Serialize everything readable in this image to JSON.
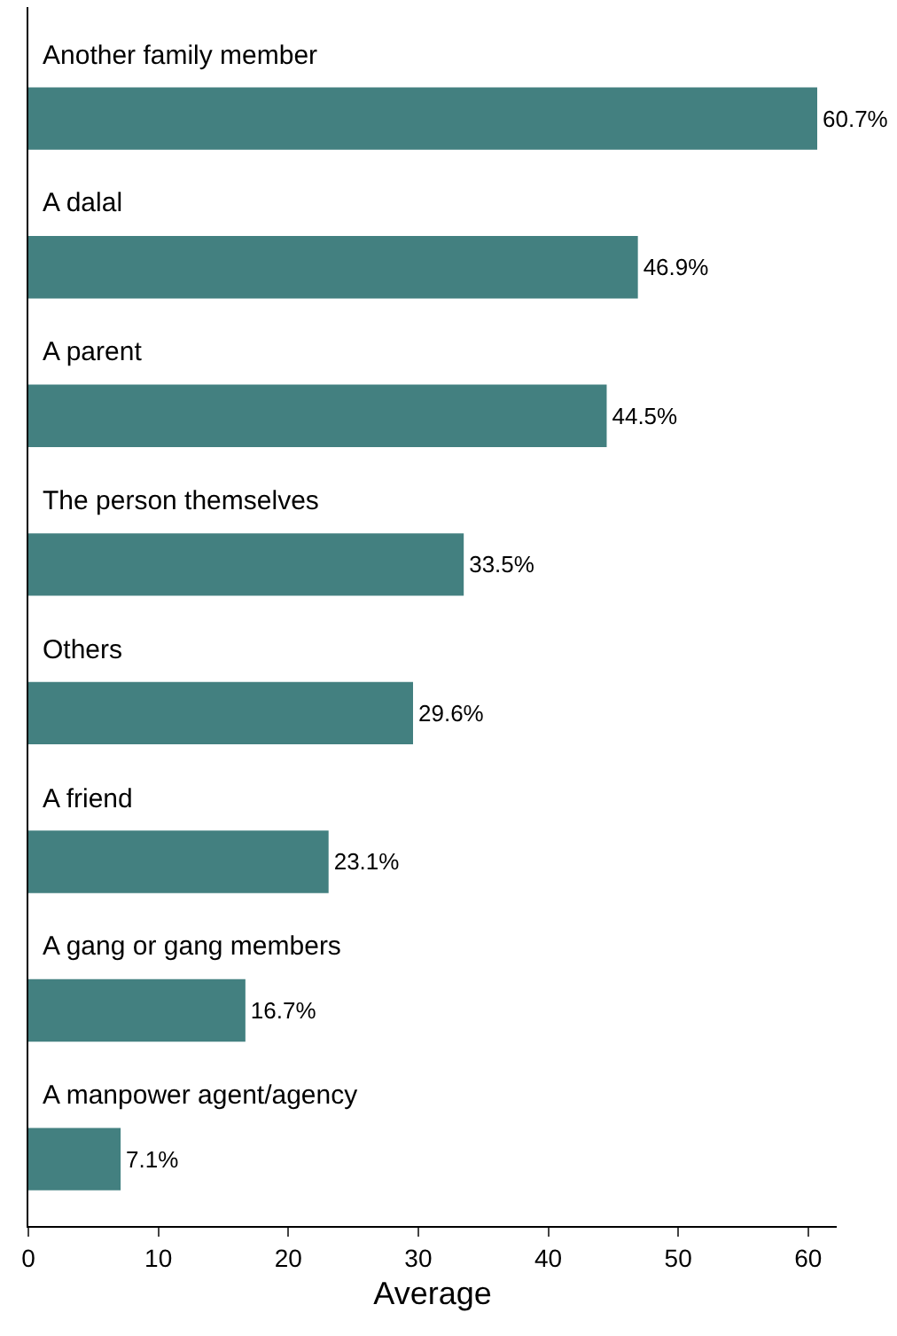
{
  "chart_data": {
    "type": "bar",
    "orientation": "horizontal",
    "xlabel": "Average",
    "categories": [
      "Another family member",
      "A dalal",
      "A parent",
      "The person themselves",
      "Others",
      "A friend",
      "A gang or gang members",
      "A manpower agent/agency"
    ],
    "values": [
      60.7,
      46.9,
      44.5,
      33.5,
      29.6,
      23.1,
      16.7,
      7.1
    ],
    "value_labels": [
      "60.7%",
      "46.9%",
      "44.5%",
      "33.5%",
      "29.6%",
      "23.1%",
      "16.7%",
      "7.1%"
    ],
    "color": "#438080",
    "xlim": [
      0,
      62.2
    ],
    "xticks": [
      0,
      10,
      20,
      30,
      40,
      50,
      60
    ],
    "legend": false
  }
}
